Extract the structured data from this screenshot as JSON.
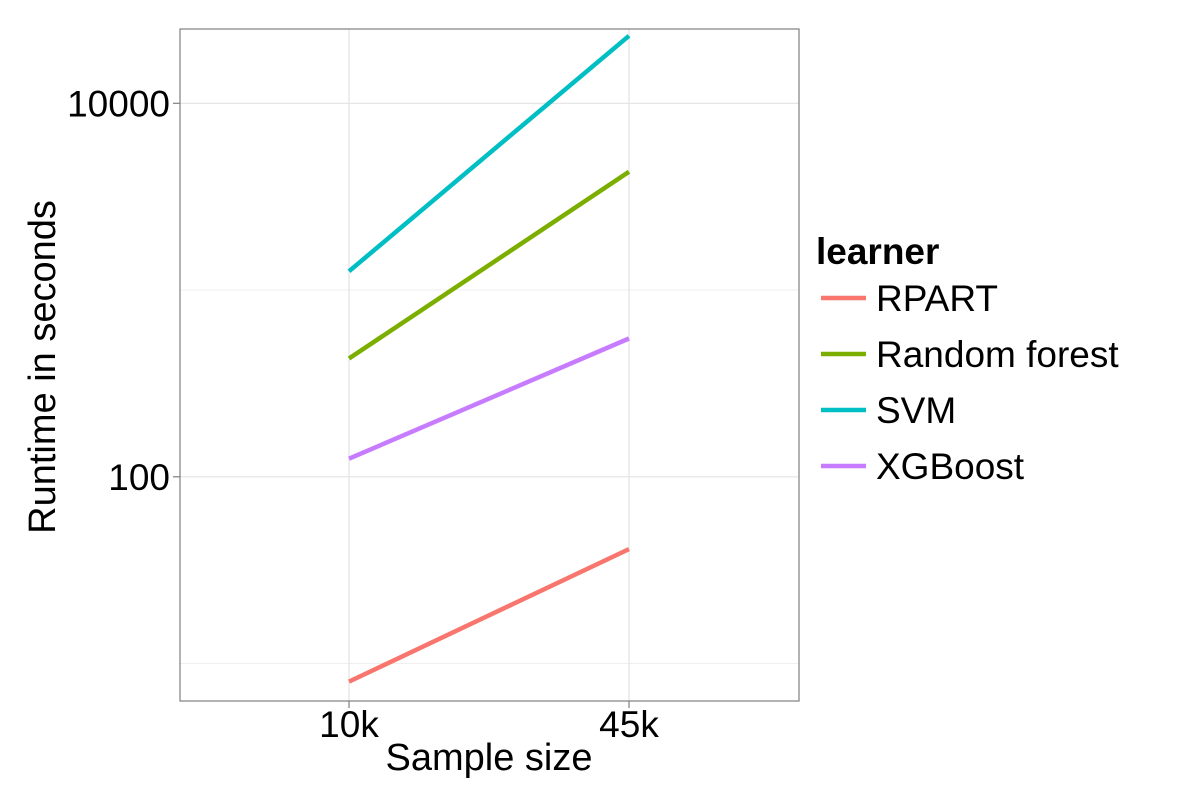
{
  "chart_data": {
    "type": "line",
    "title": "",
    "xlabel": "Sample size",
    "ylabel": "Runtime in seconds",
    "categories": [
      "10k",
      "45k"
    ],
    "y_scale": "log10",
    "ylim": [
      6.3,
      25000
    ],
    "y_ticks": [
      100,
      10000
    ],
    "y_tick_labels": [
      "100",
      "10000"
    ],
    "grid": true,
    "legend": {
      "title": "learner",
      "position": "right"
    },
    "series": [
      {
        "name": "RPART",
        "color": "#F8766D",
        "values": [
          8,
          41
        ]
      },
      {
        "name": "Random forest",
        "color": "#7CAE00",
        "values": [
          430,
          4300
        ]
      },
      {
        "name": "SVM",
        "color": "#00BFC4",
        "values": [
          1260,
          23000
        ]
      },
      {
        "name": "XGBoost",
        "color": "#C77CFF",
        "values": [
          125,
          550
        ]
      }
    ]
  }
}
